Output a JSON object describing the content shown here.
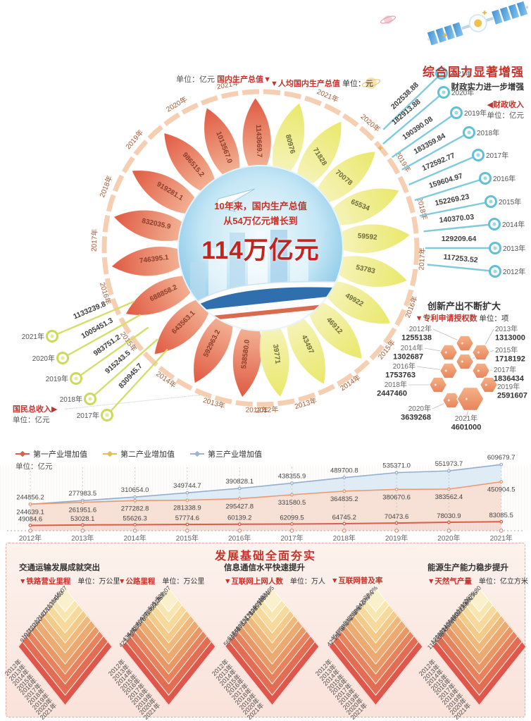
{
  "header": {
    "gdp_unit": "单位：亿元",
    "gdp_label": "国内生产总值",
    "gdp_arrow": "▼",
    "percap_arrow": "▼",
    "percap_label": "人均国内生产总值",
    "percap_unit": "单位：元"
  },
  "center": {
    "line1": "10年来，国内生产总值",
    "line2": "从54万亿元增长到",
    "line3": "114万亿元"
  },
  "strength": {
    "title": "综合国力显著增强",
    "subtitle": "财政实力进一步增强",
    "series_label": "◀财政收入",
    "unit": "单位：亿元"
  },
  "gni_block": {
    "label": "国民总收入▶",
    "unit": "单位：亿元"
  },
  "patents_block": {
    "title": "创新产出不断扩大",
    "label": "▼专利申请授权数",
    "unit": "单位：项"
  },
  "industry_block": {
    "unit": "单位：亿元",
    "legend": [
      "第一产业增加值",
      "第二产业增加值",
      "第三产业增加值"
    ],
    "legend_colors": [
      "#d95f4c",
      "#e4bd55",
      "#9cb6d0"
    ]
  },
  "foundation": {
    "title": "发展基础全面夯实",
    "sections": [
      "交通运输发展成就突出",
      "信息通信水平快速提升",
      "能源生产能力稳步提升"
    ]
  },
  "colors": {
    "accent_red": "#c5332b",
    "fiscal_teal": "#62c0d6",
    "gni_green": "#cdd95b",
    "petal_red_tip": "#e05a42",
    "petal_red_base": "#f6c3a4",
    "petal_yellow_tip": "#e9e86a",
    "petal_yellow_base": "#f8f5c8",
    "ring": "#f5c7a4",
    "hex_orange": "#ee9c6f"
  },
  "chart_data": [
    {
      "id": "gdp",
      "type": "bar",
      "title": "国内生产总值",
      "unit": "亿元",
      "categories": [
        "2012年",
        "2013年",
        "2014年",
        "2015年",
        "2016年",
        "2017年",
        "2018年",
        "2019年",
        "2020年",
        "2021年"
      ],
      "values": [
        538580.0,
        592963.2,
        643563.1,
        688858.2,
        746395.1,
        832035.9,
        919281.1,
        986515.2,
        1013567.0,
        1143669.7
      ],
      "labels": [
        "538580.0",
        "592963.2",
        "643563.1",
        "688858.2",
        "746395.1",
        "832035.9",
        "919281.1",
        "986515.2",
        "1013567.0",
        "1143669.7"
      ]
    },
    {
      "id": "percap",
      "type": "bar",
      "title": "人均国内生产总值",
      "unit": "元",
      "categories": [
        "2012年",
        "2013年",
        "2014年",
        "2015年",
        "2016年",
        "2017年",
        "2018年",
        "2019年",
        "2020年",
        "2021年"
      ],
      "values": [
        39771,
        43497,
        46912,
        49922,
        53783,
        59592,
        65534,
        70078,
        71828,
        80976
      ],
      "labels": [
        "39771",
        "43497",
        "46912",
        "49922",
        "53783",
        "59592",
        "65534",
        "70078",
        "71828",
        "80976"
      ]
    },
    {
      "id": "fiscal",
      "type": "bar",
      "title": "财政收入",
      "unit": "亿元",
      "categories": [
        "2012年",
        "2013年",
        "2014年",
        "2015年",
        "2016年",
        "2017年",
        "2018年",
        "2019年",
        "2020年",
        "2021年"
      ],
      "values": [
        117253.52,
        129209.64,
        140370.03,
        152269.23,
        159604.97,
        172592.77,
        183359.84,
        190390.08,
        182913.88,
        202538.88
      ],
      "labels": [
        "117253.52",
        "129209.64",
        "140370.03",
        "152269.23",
        "159604.97",
        "172592.77",
        "183359.84",
        "190390.08",
        "182913.88",
        "202538.88"
      ]
    },
    {
      "id": "gni",
      "type": "bar",
      "title": "国民总收入",
      "unit": "亿元",
      "categories": [
        "2017年",
        "2018年",
        "2019年",
        "2020年",
        "2021年"
      ],
      "values": [
        830945.7,
        915243.5,
        983751.2,
        1005451.3,
        1133239.8
      ],
      "labels": [
        "830945.7",
        "915243.5",
        "983751.2",
        "1005451.3",
        "1133239.8"
      ]
    },
    {
      "id": "patents",
      "type": "bar",
      "title": "专利申请授权数",
      "unit": "项",
      "categories": [
        "2012年",
        "2013年",
        "2014年",
        "2015年",
        "2016年",
        "2017年",
        "2018年",
        "2019年",
        "2020年",
        "2021年"
      ],
      "values": [
        1255138,
        1313000,
        1302687,
        1718192,
        1753763,
        1836434,
        2447460,
        2591607,
        3639268,
        4601000
      ],
      "labels": [
        "1255138",
        "1313000",
        "1302687",
        "1718192",
        "1753763",
        "1836434",
        "2447460",
        "2591607",
        "3639268",
        "4601000"
      ]
    },
    {
      "id": "industry",
      "type": "area",
      "title": "三次产业增加值",
      "unit": "亿元",
      "categories": [
        "2012年",
        "2013年",
        "2014年",
        "2015年",
        "2016年",
        "2017年",
        "2018年",
        "2019年",
        "2020年",
        "2021年"
      ],
      "series": [
        {
          "name": "第三产业增加值",
          "values": [
            244856.2,
            277983.5,
            310654.0,
            349744.7,
            390828.1,
            438355.9,
            489700.8,
            535371.0,
            551973.7,
            609679.7
          ],
          "labels": [
            "244856.2",
            "277983.5",
            "310654.0",
            "349744.7",
            "390828.1",
            "438355.9",
            "489700.8",
            "535371.0",
            "551973.7",
            "609679.7"
          ]
        },
        {
          "name": "第二产业增加值",
          "values": [
            244639.1,
            261951.6,
            277282.8,
            281338.9,
            295427.8,
            331580.5,
            364835.2,
            380670.6,
            383562.4,
            450904.5
          ],
          "labels": [
            "244639.1",
            "261951.6",
            "277282.8",
            "281338.9",
            "295427.8",
            "331580.5",
            "364835.2",
            "380670.6",
            "383562.4",
            "450904.5"
          ]
        },
        {
          "name": "第一产业增加值",
          "values": [
            49084.6,
            53028.1,
            55626.3,
            57774.6,
            60139.2,
            62099.5,
            64745.2,
            70473.6,
            78030.9,
            83085.5
          ],
          "labels": [
            "49084.6",
            "53028.1",
            "55626.3",
            "57774.6",
            "60139.2",
            "62099.5",
            "64745.2",
            "70473.6",
            "78030.9",
            "83085.5"
          ]
        }
      ]
    },
    {
      "id": "rail",
      "type": "bar",
      "title": "铁路营业里程",
      "unit": "万公里",
      "unit_label": "单位：万公里",
      "categories": [
        "2012年",
        "2013年",
        "2014年",
        "2015年",
        "2016年",
        "2017年",
        "2018年",
        "2019年",
        "2020年",
        "2021年"
      ],
      "values": [
        9.76,
        10.31,
        11.18,
        12.1,
        12.4,
        12.7,
        13.17,
        13.99,
        14.63,
        15.07
      ],
      "labels": [
        "9.76",
        "10.31",
        "11.18",
        "12.10",
        "12.40",
        "12.70",
        "13.17",
        "13.99",
        "14.63",
        "15.07"
      ]
    },
    {
      "id": "highway",
      "type": "bar",
      "title": "公路里程",
      "unit": "万公里",
      "unit_label": "单位：万公里",
      "categories": [
        "2012年",
        "2013年",
        "2014年",
        "2015年",
        "2016年",
        "2017年",
        "2018年",
        "2019年",
        "2020年",
        "2021年"
      ],
      "values": [
        423.75,
        435.62,
        446.39,
        457.73,
        469.63,
        477.35,
        484.65,
        501.25,
        519.81,
        528.07
      ],
      "labels": [
        "423.75",
        "435.62",
        "446.39",
        "457.73",
        "469.63",
        "477.35",
        "484.65",
        "501.25",
        "519.81",
        "528.07"
      ]
    },
    {
      "id": "netizens",
      "type": "bar",
      "title": "互联网上网人数",
      "unit": "万人",
      "unit_label": "单位：万人",
      "categories": [
        "2012年",
        "2013年",
        "2014年",
        "2015年",
        "2016年",
        "2017年",
        "2018年",
        "2019年",
        "2020年",
        "2021年"
      ],
      "values": [
        56400,
        61758,
        64875,
        68826,
        73125,
        77198,
        82851,
        90359,
        98899,
        103195
      ],
      "labels": [
        "56400",
        "61758",
        "64875",
        "68826",
        "73125",
        "77198",
        "82851",
        "90359",
        "98899",
        "103195"
      ]
    },
    {
      "id": "penetration",
      "type": "bar",
      "title": "互联网普及率",
      "unit": "%",
      "unit_label": "",
      "categories": [
        "2012年",
        "2013年",
        "2014年",
        "2015年",
        "2016年",
        "2017年",
        "2018年",
        "2019年",
        "2020年",
        "2021年"
      ],
      "values": [
        42.1,
        45.8,
        47.9,
        50.3,
        53.2,
        55.8,
        59.6,
        64.5,
        70.4,
        73.0
      ],
      "labels": [
        "42.1%",
        "45.8%",
        "47.9%",
        "50.3%",
        "53.2%",
        "55.8%",
        "59.6%",
        "64.5%",
        "70.4%",
        "73.0%"
      ]
    },
    {
      "id": "gas",
      "type": "bar",
      "title": "天然气产量",
      "unit": "亿立方米",
      "unit_label": "单位：亿立方米",
      "categories": [
        "2012年",
        "2013年",
        "2014年",
        "2015年",
        "2016年",
        "2017年",
        "2018年",
        "2019年",
        "2020年",
        "2021年"
      ],
      "values": [
        1106.08,
        1208.58,
        1301.57,
        1346.1,
        1368.65,
        1480.35,
        1601.59,
        1753.62,
        1924.95,
        2075.8
      ],
      "labels": [
        "1106.08",
        "1208.58",
        "1301.57",
        "1346.10",
        "1368.65",
        "1480.35",
        "1601.59",
        "1753.62",
        "1924.95",
        "2075.80"
      ]
    }
  ]
}
